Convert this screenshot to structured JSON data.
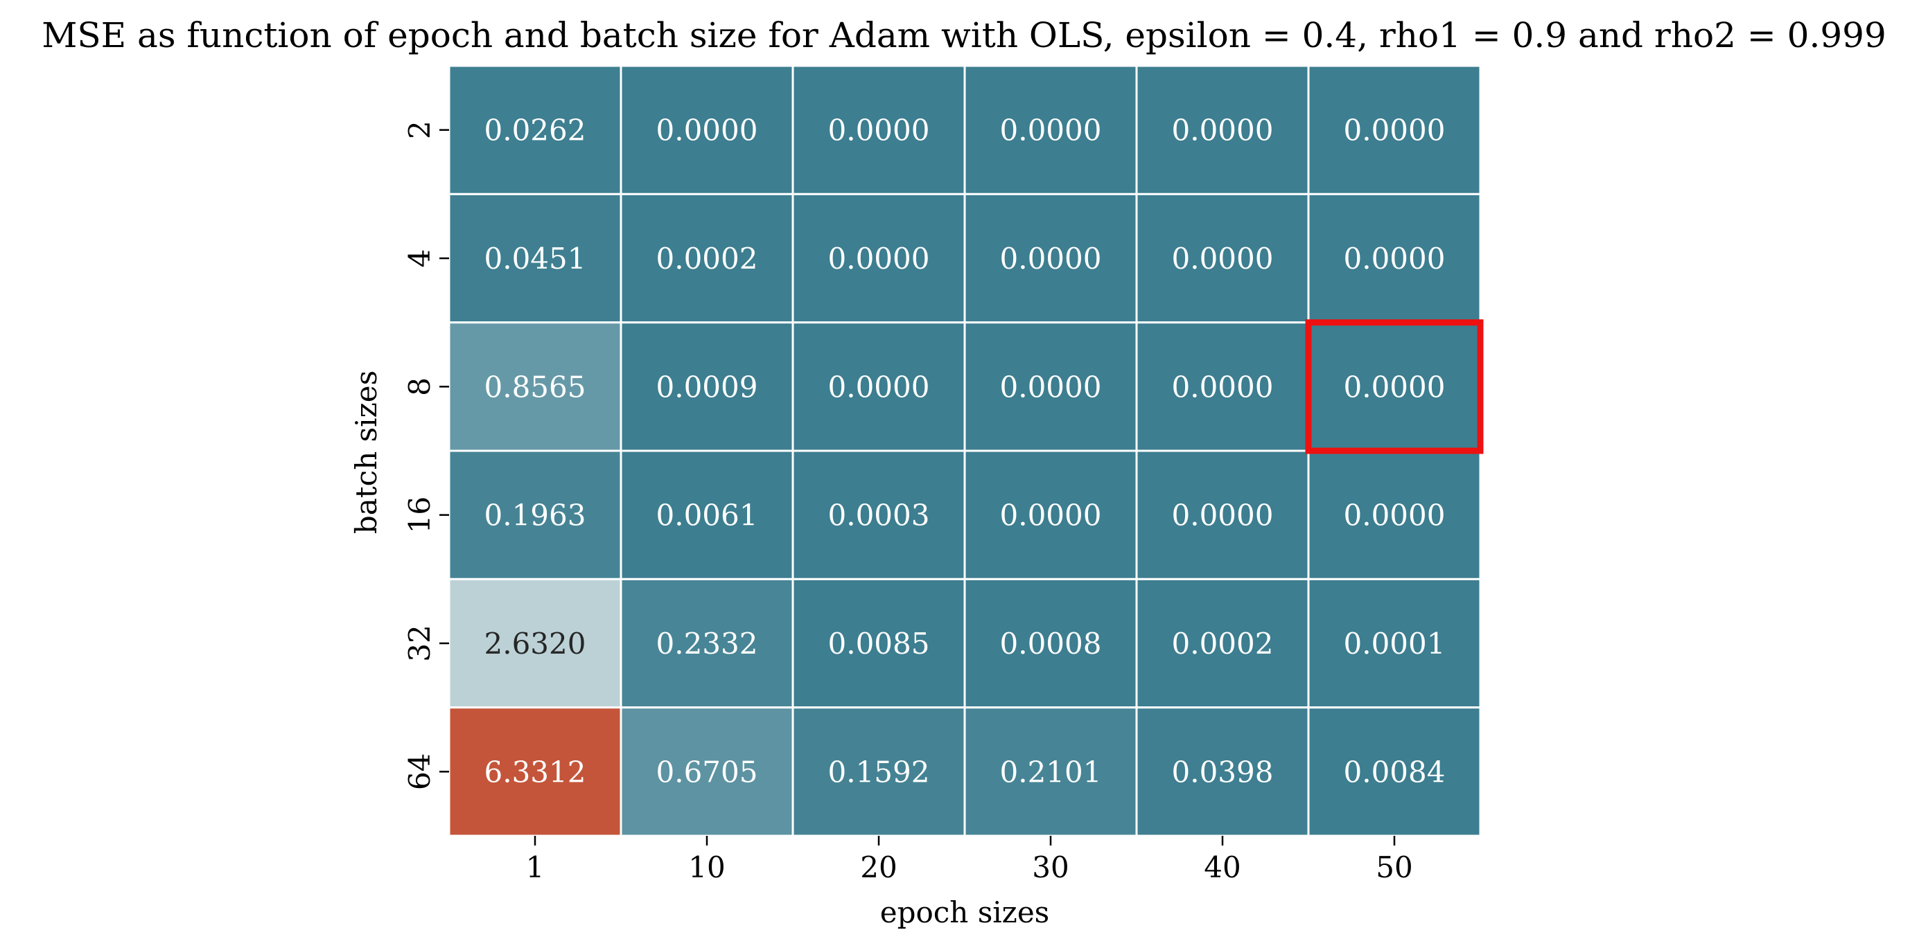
{
  "chart_data": {
    "type": "heatmap",
    "title": "MSE as function of epoch and batch size for Adam with OLS, epsilon = 0.4, rho1 = 0.9 and rho2 = 0.999",
    "xlabel": "epoch sizes",
    "ylabel": "batch sizes",
    "x_categories": [
      "1",
      "10",
      "20",
      "30",
      "40",
      "50"
    ],
    "y_categories": [
      "2",
      "4",
      "8",
      "16",
      "32",
      "64"
    ],
    "values": [
      [
        0.0262,
        0.0,
        0.0,
        0.0,
        0.0,
        0.0
      ],
      [
        0.0451,
        0.0002,
        0.0,
        0.0,
        0.0,
        0.0
      ],
      [
        0.8565,
        0.0009,
        0.0,
        0.0,
        0.0,
        0.0
      ],
      [
        0.1963,
        0.0061,
        0.0003,
        0.0,
        0.0,
        0.0
      ],
      [
        2.632,
        0.2332,
        0.0085,
        0.0008,
        0.0002,
        0.0001
      ],
      [
        6.3312,
        0.6705,
        0.1592,
        0.2101,
        0.0398,
        0.0084
      ]
    ],
    "cell_labels": [
      [
        "0.0262",
        "0.0000",
        "0.0000",
        "0.0000",
        "0.0000",
        "0.0000"
      ],
      [
        "0.0451",
        "0.0002",
        "0.0000",
        "0.0000",
        "0.0000",
        "0.0000"
      ],
      [
        "0.8565",
        "0.0009",
        "0.0000",
        "0.0000",
        "0.0000",
        "0.0000"
      ],
      [
        "0.1963",
        "0.0061",
        "0.0003",
        "0.0000",
        "0.0000",
        "0.0000"
      ],
      [
        "2.6320",
        "0.2332",
        "0.0085",
        "0.0008",
        "0.0002",
        "0.0001"
      ],
      [
        "6.3312",
        "0.6705",
        "0.1592",
        "0.2101",
        "0.0398",
        "0.0084"
      ]
    ],
    "highlight": {
      "row": 2,
      "col": 5,
      "color": "#ee1111"
    },
    "colorscale": {
      "low": "#3d7e90",
      "mid": "#d6e2e4",
      "high": "#c4553a",
      "vmin": 0,
      "vmax": 6.3312
    },
    "grid_line_color": "#ffffff",
    "colorbar": false
  }
}
